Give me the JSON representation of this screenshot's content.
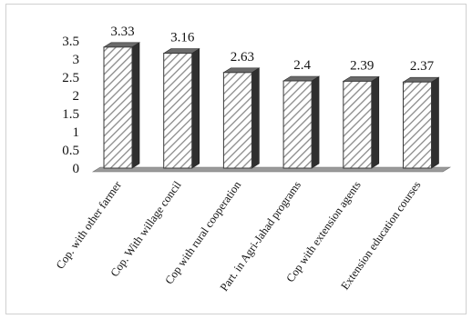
{
  "chart_data": {
    "type": "bar",
    "style": "3d-hatched",
    "categories": [
      "Cop. with other farmer",
      "Cop. With willage concil",
      "Cop with rural cooperation",
      "Part. in Agri-Jahad programs",
      "Cop with extension agents",
      "Extension education courses"
    ],
    "values": [
      3.33,
      3.16,
      2.63,
      2.4,
      2.39,
      2.37
    ],
    "data_labels": [
      "3.33",
      "3.16",
      "2.63",
      "2.4",
      "2.39",
      "2.37"
    ],
    "title": "",
    "xlabel": "",
    "ylabel": "",
    "ylim": [
      0,
      3.5
    ],
    "yticks": [
      "0",
      "0.5",
      "1",
      "1.5",
      "2",
      "2.5",
      "3",
      "3.5"
    ],
    "grid": false,
    "legend": "none",
    "colors": {
      "bar_face": "#ffffff",
      "bar_hatch": "#8a8a8a",
      "bar_side": "#2f2f2f",
      "bar_top": "#6a6a6a",
      "floor": "#9a9a9a"
    }
  }
}
